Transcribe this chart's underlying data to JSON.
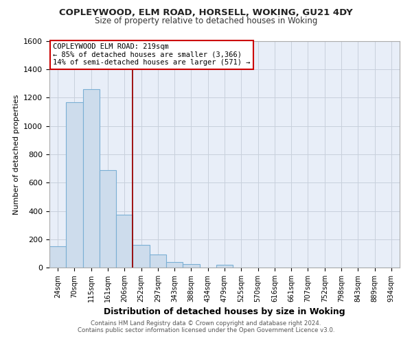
{
  "title": "COPLEYWOOD, ELM ROAD, HORSELL, WOKING, GU21 4DY",
  "subtitle": "Size of property relative to detached houses in Woking",
  "xlabel": "Distribution of detached houses by size in Woking",
  "ylabel": "Number of detached properties",
  "bar_labels": [
    "24sqm",
    "70sqm",
    "115sqm",
    "161sqm",
    "206sqm",
    "252sqm",
    "297sqm",
    "343sqm",
    "388sqm",
    "434sqm",
    "479sqm",
    "525sqm",
    "570sqm",
    "616sqm",
    "661sqm",
    "707sqm",
    "752sqm",
    "798sqm",
    "843sqm",
    "889sqm",
    "934sqm"
  ],
  "bar_values": [
    150,
    1170,
    1260,
    690,
    375,
    160,
    90,
    38,
    22,
    0,
    18,
    0,
    0,
    0,
    0,
    0,
    0,
    0,
    0,
    0,
    0
  ],
  "bar_color": "#cddcec",
  "bar_edge_color": "#7aafd4",
  "ylim": [
    0,
    1600
  ],
  "yticks": [
    0,
    200,
    400,
    600,
    800,
    1000,
    1200,
    1400,
    1600
  ],
  "red_line_x": 4.5,
  "annotation_line1": "COPLEYWOOD ELM ROAD: 219sqm",
  "annotation_line2": "← 85% of detached houses are smaller (3,366)",
  "annotation_line3": "14% of semi-detached houses are larger (571) →",
  "footnote1": "Contains HM Land Registry data © Crown copyright and database right 2024.",
  "footnote2": "Contains public sector information licensed under the Open Government Licence v3.0.",
  "background_color": "#ffffff",
  "plot_bg_color": "#e8eef8",
  "grid_color": "#c8d0dc"
}
